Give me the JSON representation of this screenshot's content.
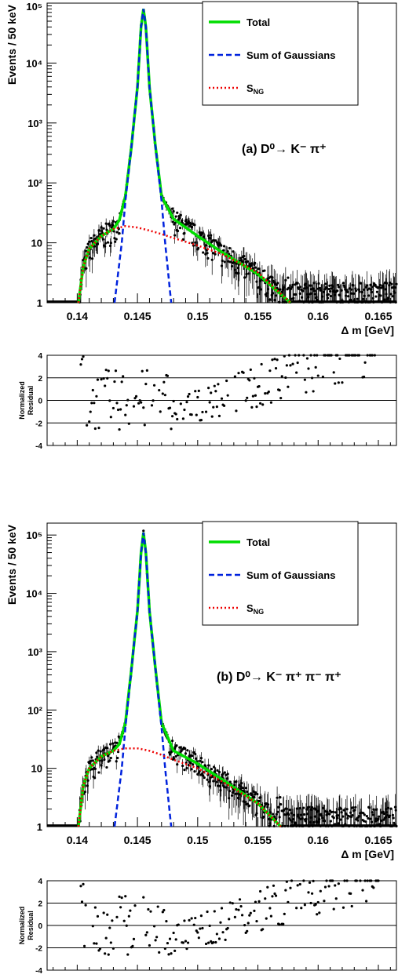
{
  "chart_data": [
    {
      "id": "a",
      "type": "line",
      "annotation": "(a) D⁰→ K⁻ π⁺",
      "xlabel": "Δ m [GeV]",
      "ylabel": "Events / 50 keV",
      "xlim": [
        0.1375,
        0.1665
      ],
      "ylim": [
        1,
        100000
      ],
      "yscale": "log",
      "xticks": [
        "0.14",
        "0.145",
        "0.15",
        "0.155",
        "0.16",
        "0.165"
      ],
      "yticks": [
        "1",
        "10",
        "10²",
        "10³",
        "10⁴",
        "10⁵"
      ],
      "legend_position": "top-right",
      "series": [
        {
          "name": "Total",
          "color": "#00dd00",
          "style": "solid",
          "x": [
            0.1401,
            0.1405,
            0.141,
            0.142,
            0.143,
            0.1435,
            0.144,
            0.1445,
            0.145,
            0.1453,
            0.1455,
            0.1457,
            0.146,
            0.1465,
            0.147,
            0.148,
            0.15,
            0.152,
            0.155,
            0.1577
          ],
          "y": [
            1,
            4,
            8,
            13,
            17,
            24,
            60,
            400,
            4000,
            40000,
            80000,
            40000,
            4000,
            400,
            60,
            25,
            13,
            7,
            3,
            1
          ]
        },
        {
          "name": "Sum of Gaussians",
          "color": "#0022dd",
          "style": "dashed",
          "x": [
            0.1431,
            0.1437,
            0.144,
            0.1445,
            0.145,
            0.1453,
            0.1455,
            0.1457,
            0.146,
            0.1465,
            0.147,
            0.1473,
            0.1478
          ],
          "y": [
            1,
            10,
            50,
            400,
            4000,
            40000,
            80000,
            40000,
            4000,
            400,
            50,
            10,
            1
          ]
        },
        {
          "name": "S_NG",
          "color": "#ee0000",
          "style": "dotted",
          "x": [
            0.1401,
            0.1405,
            0.141,
            0.142,
            0.143,
            0.144,
            0.145,
            0.146,
            0.147,
            0.148,
            0.15,
            0.152,
            0.155,
            0.1577
          ],
          "y": [
            1,
            4,
            8,
            13,
            17,
            19,
            18,
            16,
            14,
            12,
            9,
            6.5,
            3.2,
            1
          ]
        }
      ],
      "residuals": {
        "ylabel": "Normalized Residual",
        "ylim": [
          -4,
          4
        ],
        "yticks": [
          "-4",
          "-2",
          "0",
          "2",
          "4"
        ]
      }
    },
    {
      "id": "b",
      "type": "line",
      "annotation": "(b) D⁰→ K⁻ π⁺ π⁻ π⁺",
      "xlabel": "Δ m [GeV]",
      "ylabel": "Events / 50 keV",
      "xlim": [
        0.1375,
        0.1665
      ],
      "ylim": [
        1,
        160000
      ],
      "yscale": "log",
      "xticks": [
        "0.14",
        "0.145",
        "0.15",
        "0.155",
        "0.16",
        "0.165"
      ],
      "yticks": [
        "1",
        "10",
        "10²",
        "10³",
        "10⁴",
        "10⁵"
      ],
      "legend_position": "top-right",
      "series": [
        {
          "name": "Total",
          "color": "#00dd00",
          "style": "solid",
          "x": [
            0.1401,
            0.1405,
            0.141,
            0.142,
            0.143,
            0.1435,
            0.144,
            0.1445,
            0.145,
            0.1453,
            0.1455,
            0.1457,
            0.146,
            0.1465,
            0.147,
            0.148,
            0.15,
            0.152,
            0.155,
            0.1569
          ],
          "y": [
            1,
            5,
            10,
            16,
            20,
            26,
            60,
            500,
            5000,
            50000,
            110000,
            50000,
            5000,
            500,
            60,
            20,
            12,
            6.5,
            2.5,
            1
          ]
        },
        {
          "name": "Sum of Gaussians",
          "color": "#0022dd",
          "style": "dashed",
          "x": [
            0.1431,
            0.1437,
            0.144,
            0.1445,
            0.145,
            0.1453,
            0.1455,
            0.1457,
            0.146,
            0.1465,
            0.147,
            0.1473,
            0.1478
          ],
          "y": [
            1,
            10,
            50,
            500,
            5000,
            50000,
            110000,
            50000,
            5000,
            500,
            50,
            10,
            1
          ]
        },
        {
          "name": "S_NG",
          "color": "#ee0000",
          "style": "dotted",
          "x": [
            0.1401,
            0.1405,
            0.141,
            0.142,
            0.143,
            0.144,
            0.145,
            0.146,
            0.147,
            0.148,
            0.15,
            0.152,
            0.155,
            0.1569
          ],
          "y": [
            1,
            5,
            10,
            16,
            20,
            22,
            22,
            20,
            17,
            14,
            10,
            6,
            2.5,
            1
          ]
        }
      ],
      "residuals": {
        "ylabel": "Normalized Residual",
        "ylim": [
          -4,
          4
        ],
        "yticks": [
          "-4",
          "-2",
          "0",
          "2",
          "4"
        ]
      }
    }
  ]
}
